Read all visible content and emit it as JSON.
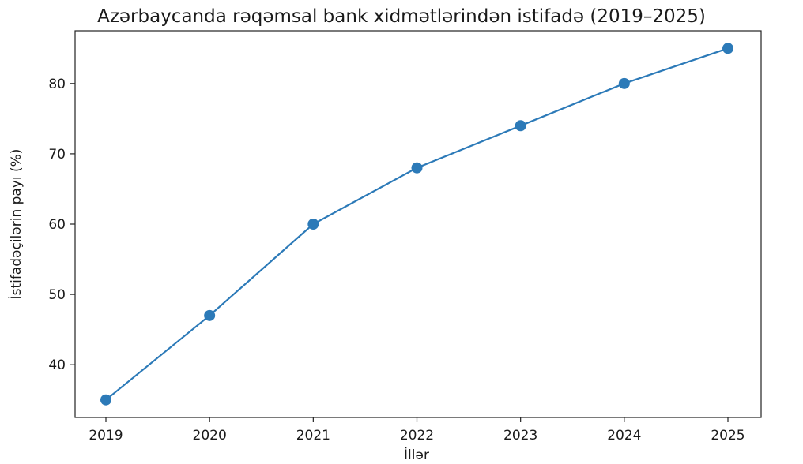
{
  "chart_data": {
    "type": "line",
    "title": "Azərbaycanda rəqəmsal bank xidmətlərindən istifadə (2019–2025)",
    "xlabel": "İllər",
    "ylabel": "İstifadəçilərin payı (%)",
    "x": [
      "2019",
      "2020",
      "2021",
      "2022",
      "2023",
      "2024",
      "2025"
    ],
    "series": [
      {
        "values": [
          35,
          47,
          60,
          68,
          74,
          80,
          85
        ]
      }
    ],
    "yticks": [
      40,
      50,
      60,
      70,
      80
    ],
    "ylim": [
      32.5,
      87.5
    ],
    "grid": false,
    "line_color": "#2c7ab8",
    "marker": "circle"
  }
}
